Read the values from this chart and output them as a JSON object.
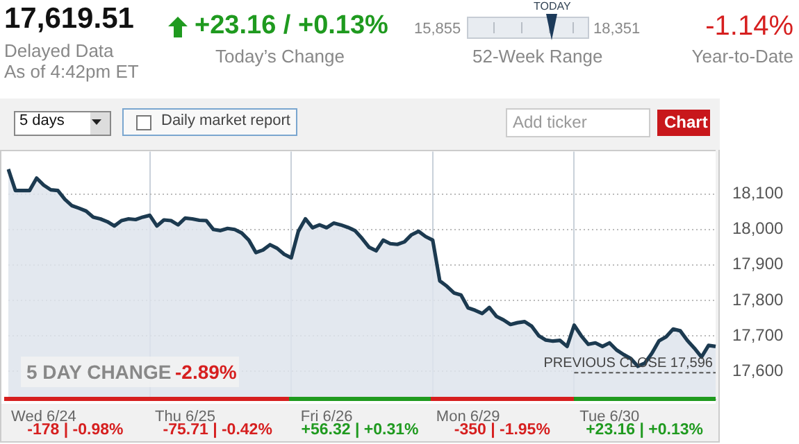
{
  "chart_data": {
    "type": "area",
    "categories": [
      null,
      null,
      null,
      null,
      null,
      "Wed 6/24",
      null,
      null,
      null,
      null,
      null,
      null,
      null,
      null,
      null,
      null,
      null,
      null,
      null,
      null,
      null,
      null,
      null,
      null,
      null,
      "Thu 6/25",
      null,
      null,
      null,
      null,
      null,
      null,
      null,
      null,
      null,
      null,
      null,
      null,
      null,
      null,
      null,
      null,
      null,
      null,
      null,
      "Fri 6/26",
      null,
      null,
      null,
      null,
      null,
      null,
      null,
      null,
      null,
      null,
      null,
      null,
      null,
      null,
      null,
      null,
      null,
      null,
      null,
      "Mon 6/29",
      null,
      null,
      null,
      null,
      null,
      null,
      null,
      null,
      null,
      null,
      null,
      null,
      null,
      null,
      null,
      null,
      null,
      null,
      null,
      "Tue 6/30",
      null,
      null,
      null,
      null,
      null,
      null,
      null,
      null,
      null,
      null,
      null,
      null,
      null,
      null,
      null
    ],
    "ylim": [
      17520,
      18220
    ],
    "yticks": [
      {
        "value": 17600,
        "label": "17,600"
      },
      {
        "value": 17700,
        "label": "17,700"
      },
      {
        "value": 17800,
        "label": "17,800"
      },
      {
        "value": 17900,
        "label": "17,900"
      },
      {
        "value": 18000,
        "label": "18,000"
      },
      {
        "value": 18100,
        "label": "18,100"
      }
    ],
    "grid": true,
    "series": [
      {
        "color": "#1c3a50",
        "values": [
          18170,
          18110,
          18110,
          18110,
          18145,
          18125,
          18112,
          18110,
          18085,
          18067,
          18060,
          18052,
          18035,
          18030,
          18022,
          18010,
          18025,
          18030,
          18028,
          18035,
          18040,
          18010,
          18027,
          18025,
          18013,
          18032,
          18030,
          18026,
          18025,
          18000,
          17997,
          18003,
          18000,
          17990,
          17970,
          17935,
          17942,
          17957,
          17947,
          17930,
          17920,
          17995,
          18030,
          18005,
          18013,
          18005,
          18018,
          18013,
          18006,
          17997,
          17975,
          17950,
          17940,
          17970,
          17960,
          17958,
          17965,
          17985,
          17995,
          17980,
          17970,
          17855,
          17840,
          17821,
          17815,
          17779,
          17772,
          17763,
          17780,
          17755,
          17745,
          17732,
          17737,
          17740,
          17727,
          17700,
          17688,
          17685,
          17687,
          17670,
          17730,
          17700,
          17676,
          17680,
          17670,
          17680,
          17660,
          17647,
          17636,
          17614,
          17623,
          17651,
          17686,
          17697,
          17719,
          17714,
          17687,
          17665,
          17640,
          17673,
          17670
        ]
      }
    ],
    "ref_lines": [
      {
        "axis": "y",
        "value": 17596,
        "label": "PREVIOUS CLOSE 17,596",
        "line_style": "dashed",
        "color": "#555555"
      }
    ],
    "annotations": [
      "17,619.51",
      "+23.16 / +0.13%",
      "Today’s Change",
      "Delayed Data",
      "As of 4:42pm ET",
      "15,855",
      "TODAY",
      "18,351",
      "52-Week Range",
      "-1.14%",
      "Year-to-Date",
      "5 days",
      "Daily market report",
      "Add ticker",
      "Chart",
      "5 DAY CHANGE",
      "-2.89%",
      "-178 | -0.98%",
      "-75.71 | -0.42%",
      "+56.32 | +0.31%",
      "-350 | -1.95%",
      "+23.16 | +0.13%"
    ]
  }
}
